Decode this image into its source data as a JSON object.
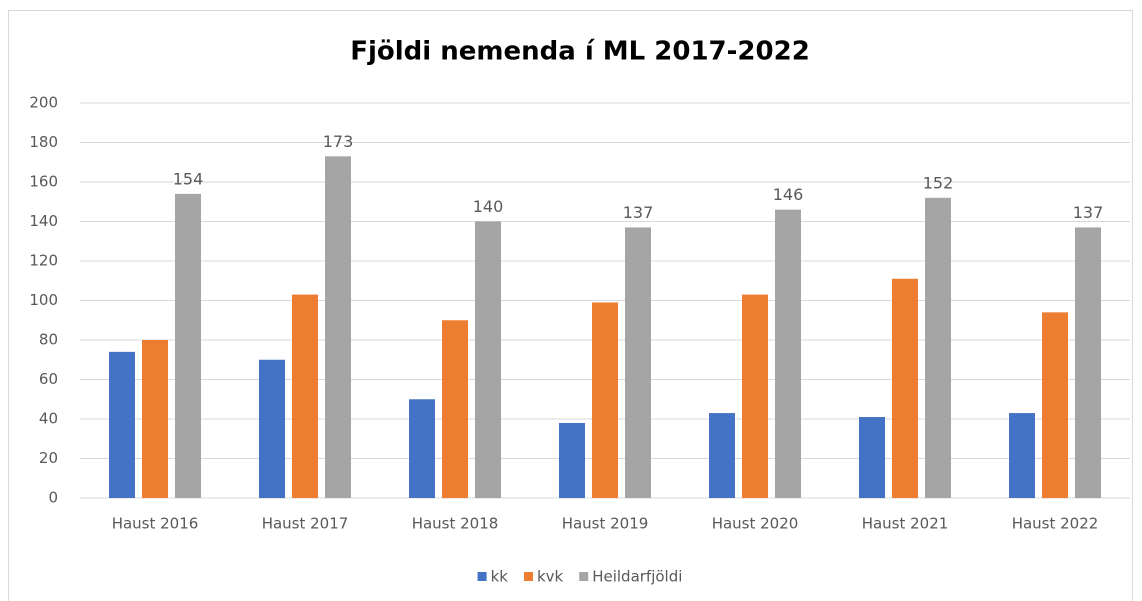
{
  "chart_data": {
    "type": "bar",
    "title": "Fjöldi nemenda í ML 2017-2022",
    "categories": [
      "Haust 2016",
      "Haust 2017",
      "Haust 2018",
      "Haust 2019",
      "Haust 2020",
      "Haust 2021",
      "Haust 2022"
    ],
    "series": [
      {
        "name": "kk",
        "color": "#4472c4",
        "values": [
          74,
          70,
          50,
          38,
          43,
          41,
          43
        ]
      },
      {
        "name": "kvk",
        "color": "#ed7d31",
        "values": [
          80,
          103,
          90,
          99,
          103,
          111,
          94
        ]
      },
      {
        "name": "Heildarfjöldi",
        "color": "#a5a5a5",
        "values": [
          154,
          173,
          140,
          137,
          146,
          152,
          137
        ],
        "data_labels": true
      }
    ],
    "ylim": [
      0,
      200
    ],
    "yticks": [
      0,
      20,
      40,
      60,
      80,
      100,
      120,
      140,
      160,
      180,
      200
    ],
    "grid": true,
    "legend": "bottom"
  }
}
